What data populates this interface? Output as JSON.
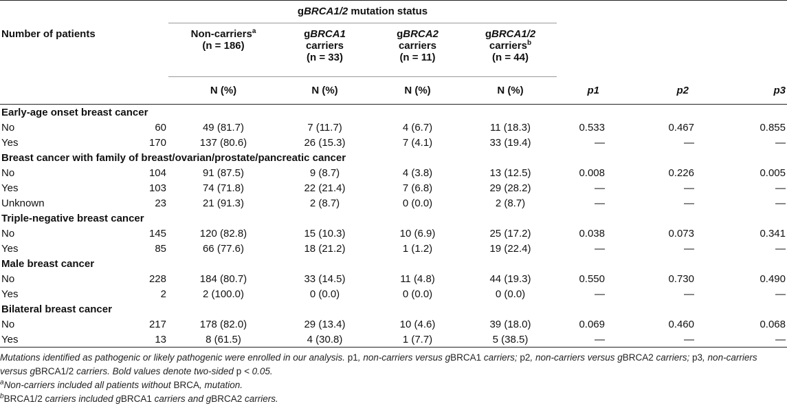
{
  "header": {
    "group_title_prefix": "g",
    "group_title_italic": "BRCA1/2",
    "group_title_suffix": " mutation status",
    "row_label": "Number of patients",
    "cols": [
      {
        "line1": "Non-carriers",
        "sup": "a",
        "line2": "(n = 186)"
      },
      {
        "line1_prefix": "g",
        "line1_italic": "BRCA1",
        "line2": "carriers",
        "line3": "(n = 33)"
      },
      {
        "line1_prefix": "g",
        "line1_italic": "BRCA2",
        "line2": "carriers",
        "line3": "(n = 11)"
      },
      {
        "line1_prefix": "g",
        "line1_italic": "BRCA1/2",
        "line2": "carriers",
        "sup": "b",
        "line3": "(n = 44)"
      }
    ],
    "unit": "N (%)",
    "p1": "p1",
    "p2": "p2",
    "p3": "p3"
  },
  "sections": [
    {
      "title": "Early-age onset breast cancer",
      "rows": [
        {
          "label": "No",
          "n": "60",
          "nc": "49 (81.7)",
          "b1": "7 (11.7)",
          "b2": "4 (6.7)",
          "b12": "11 (18.3)",
          "p1": "0.533",
          "p2": "0.467",
          "p3": "0.855"
        },
        {
          "label": "Yes",
          "n": "170",
          "nc": "137 (80.6)",
          "b1": "26 (15.3)",
          "b2": "7 (4.1)",
          "b12": "33 (19.4)",
          "p1": "—",
          "p2": "—",
          "p3": "—"
        }
      ]
    },
    {
      "title": "Breast cancer with family of breast/ovarian/prostate/pancreatic cancer",
      "rows": [
        {
          "label": "No",
          "n": "104",
          "nc": "91 (87.5)",
          "b1": "9 (8.7)",
          "b2": "4 (3.8)",
          "b12": "13 (12.5)",
          "p1": "0.008",
          "p2": "0.226",
          "p3": "0.005"
        },
        {
          "label": "Yes",
          "n": "103",
          "nc": "74 (71.8)",
          "b1": "22 (21.4)",
          "b2": "7 (6.8)",
          "b12": "29 (28.2)",
          "p1": "—",
          "p2": "—",
          "p3": "—"
        },
        {
          "label": "Unknown",
          "n": "23",
          "nc": "21 (91.3)",
          "b1": "2 (8.7)",
          "b2": "0 (0.0)",
          "b12": "2 (8.7)",
          "p1": "—",
          "p2": "—",
          "p3": "—"
        }
      ]
    },
    {
      "title": "Triple-negative breast cancer",
      "rows": [
        {
          "label": "No",
          "n": "145",
          "nc": "120 (82.8)",
          "b1": "15 (10.3)",
          "b2": "10 (6.9)",
          "b12": "25 (17.2)",
          "p1": "0.038",
          "p2": "0.073",
          "p3": "0.341"
        },
        {
          "label": "Yes",
          "n": "85",
          "nc": "66 (77.6)",
          "b1": "18 (21.2)",
          "b2": "1 (1.2)",
          "b12": "19 (22.4)",
          "p1": "—",
          "p2": "—",
          "p3": "—"
        }
      ]
    },
    {
      "title": "Male breast cancer",
      "rows": [
        {
          "label": "No",
          "n": "228",
          "nc": "184 (80.7)",
          "b1": "33 (14.5)",
          "b2": "11 (4.8)",
          "b12": "44 (19.3)",
          "p1": "0.550",
          "p2": "0.730",
          "p3": "0.490"
        },
        {
          "label": "Yes",
          "n": "2",
          "nc": "2 (100.0)",
          "b1": "0 (0.0)",
          "b2": "0 (0.0)",
          "b12": "0 (0.0)",
          "p1": "—",
          "p2": "—",
          "p3": "—"
        }
      ]
    },
    {
      "title": "Bilateral breast cancer",
      "rows": [
        {
          "label": "No",
          "n": "217",
          "nc": "178 (82.0)",
          "b1": "29 (13.4)",
          "b2": "10 (4.6)",
          "b12": "39 (18.0)",
          "p1": "0.069",
          "p2": "0.460",
          "p3": "0.068"
        },
        {
          "label": "Yes",
          "n": "13",
          "nc": "8 (61.5)",
          "b1": "4 (30.8)",
          "b2": "1 (7.7)",
          "b12": "5 (38.5)",
          "p1": "—",
          "p2": "—",
          "p3": "—"
        }
      ]
    }
  ],
  "footnotes": {
    "main_1": "Mutations identified as pathogenic or likely pathogenic were enrolled in our analysis. ",
    "p1_tag": "p1",
    "main_2": ", non-carriers versus g",
    "brca1_up": "BRCA1",
    "main_3": " carriers; ",
    "p2_tag": "p2",
    "main_4": ", non-carriers versus g",
    "brca2_up": "BRCA2",
    "main_5": " carriers; ",
    "p3_tag": "p3",
    "main_6": ", non-carriers versus g",
    "brca12_up": "BRCA1/2",
    "main_7": " carriers. Bold values denote two-sided ",
    "p_tag": "p",
    "main_8": " < 0.05.",
    "a_sup": "a",
    "a_1": "Non-carriers included all patients without ",
    "a_up": "BRCA",
    "a_2": ", mutation.",
    "b_sup": "b",
    "b_up": "BRCA1/2",
    "b_1": " carriers included g",
    "b_up2": "BRCA1",
    "b_2": " carriers and g",
    "b_up3": "BRCA2",
    "b_3": " carriers."
  }
}
